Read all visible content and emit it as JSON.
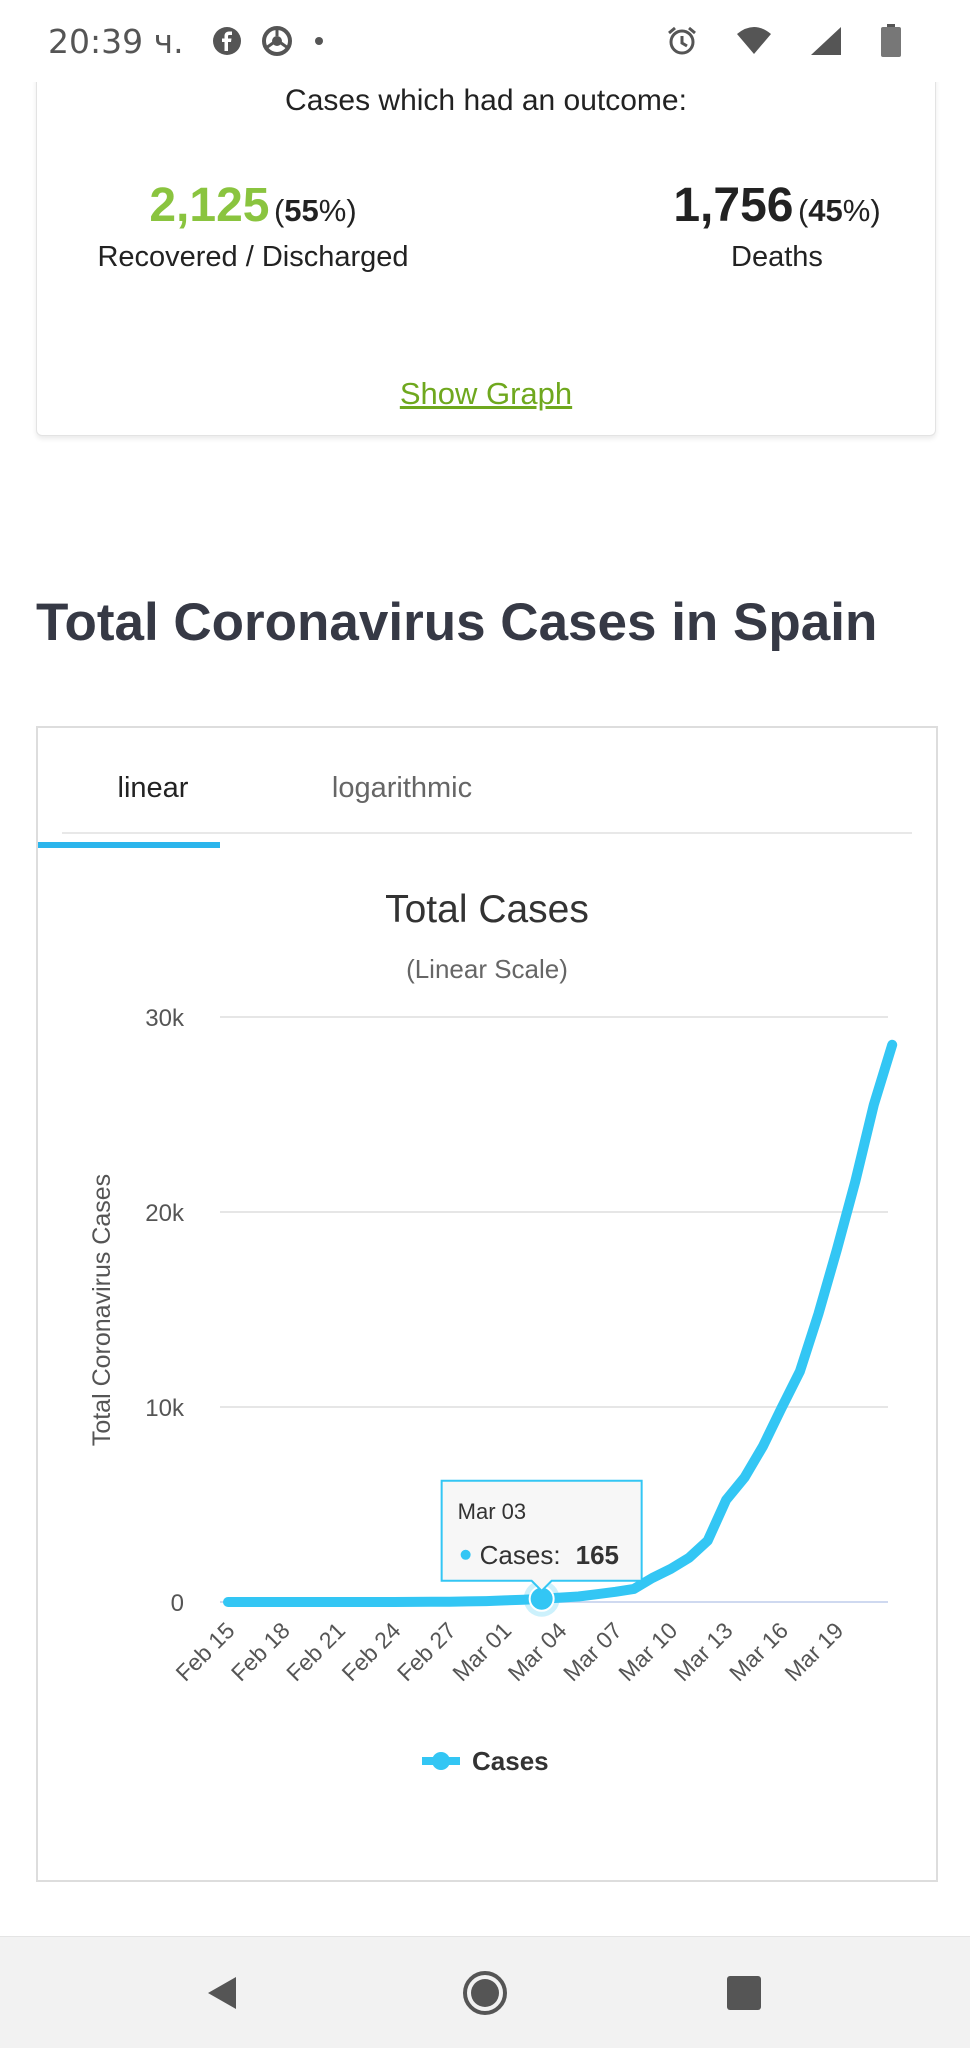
{
  "status_bar": {
    "time": "20:39 ч.",
    "icons": [
      "facebook-icon",
      "chrome-icon",
      "dot-icon",
      "alarm-icon",
      "wifi-icon",
      "signal-icon",
      "battery-icon"
    ]
  },
  "outcome": {
    "title": "Cases which had an outcome:",
    "recovered_number": "2,125",
    "recovered_pct_open": "(",
    "recovered_pct": "55",
    "recovered_pct_close": "%)",
    "recovered_label": "Recovered / Discharged",
    "deaths_number": "1,756",
    "deaths_pct_open": "(",
    "deaths_pct": "45",
    "deaths_pct_close": "%)",
    "deaths_label": "Deaths",
    "show_graph": "Show Graph",
    "colors": {
      "recovered": "#8ac43f",
      "link": "#6fa81e"
    }
  },
  "section_heading": "Total Coronavirus Cases in Spain",
  "tabs": [
    {
      "label": "linear",
      "active": true
    },
    {
      "label": "logarithmic",
      "active": false
    }
  ],
  "chart_data": {
    "type": "line",
    "title": "Total Cases",
    "subtitle": "(Linear Scale)",
    "ylabel": "Total Coronavirus Cases",
    "xlabel": "",
    "ylim": [
      0,
      30000
    ],
    "y_ticks": [
      0,
      10000,
      20000,
      30000
    ],
    "y_tick_labels": [
      "0",
      "10k",
      "20k",
      "30k"
    ],
    "x_tick_labels": [
      "Feb 15",
      "Feb 18",
      "Feb 21",
      "Feb 24",
      "Feb 27",
      "Mar 01",
      "Mar 04",
      "Mar 07",
      "Mar 10",
      "Mar 13",
      "Mar 16",
      "Mar 19"
    ],
    "grid": true,
    "legend_position": "bottom",
    "series": [
      {
        "name": "Cases",
        "color": "#33c6f4",
        "x": [
          "Feb 15",
          "Feb 16",
          "Feb 17",
          "Feb 18",
          "Feb 19",
          "Feb 20",
          "Feb 21",
          "Feb 22",
          "Feb 23",
          "Feb 24",
          "Feb 25",
          "Feb 26",
          "Feb 27",
          "Feb 28",
          "Feb 29",
          "Mar 01",
          "Mar 02",
          "Mar 03",
          "Mar 04",
          "Mar 05",
          "Mar 06",
          "Mar 07",
          "Mar 08",
          "Mar 09",
          "Mar 10",
          "Mar 11",
          "Mar 12",
          "Mar 13",
          "Mar 14",
          "Mar 15",
          "Mar 16",
          "Mar 17",
          "Mar 18",
          "Mar 19",
          "Mar 20",
          "Mar 21",
          "Mar 22"
        ],
        "values": [
          2,
          2,
          2,
          2,
          2,
          2,
          2,
          2,
          2,
          2,
          6,
          13,
          15,
          32,
          45,
          84,
          120,
          165,
          228,
          282,
          401,
          525,
          674,
          1231,
          1695,
          2277,
          3146,
          5232,
          6391,
          7988,
          9942,
          11826,
          14769,
          18077,
          21571,
          25496,
          28572
        ]
      }
    ],
    "tooltip": {
      "date": "Mar 03",
      "label": "Cases:",
      "value": "165"
    }
  }
}
